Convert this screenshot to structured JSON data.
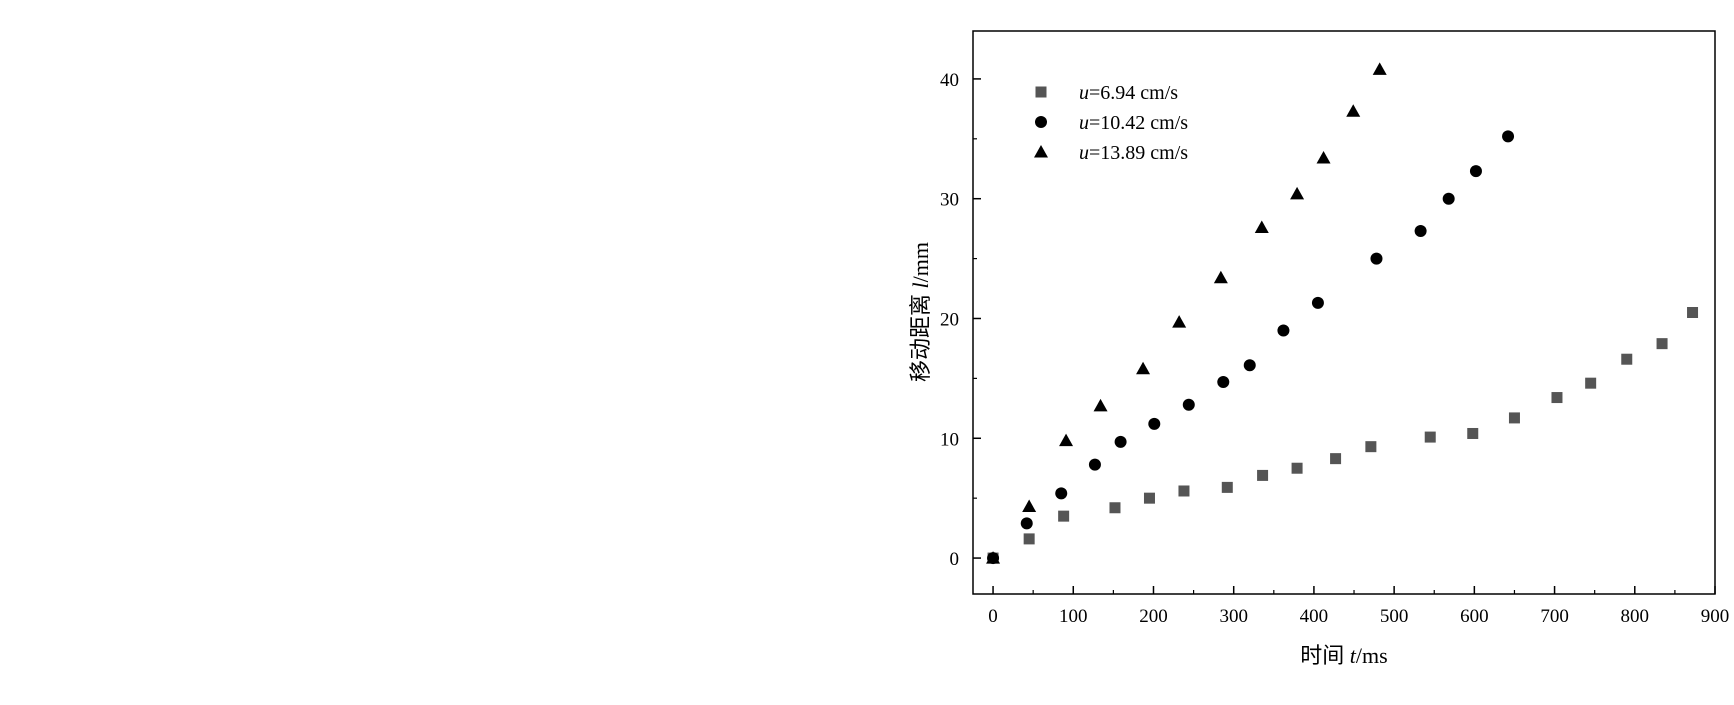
{
  "chart_data": {
    "type": "scatter",
    "xlabel": {
      "prefix": "时间 ",
      "var": "t",
      "unit": "/ms"
    },
    "ylabel": {
      "prefix": "移动距离 ",
      "var": "l",
      "unit": "/mm"
    },
    "xlim": [
      -25,
      900
    ],
    "ylim": [
      -3,
      44
    ],
    "xticks": [
      0,
      100,
      200,
      300,
      400,
      500,
      600,
      700,
      800,
      900
    ],
    "yticks": [
      0,
      10,
      20,
      30,
      40
    ],
    "grid": false,
    "legend_position": "top-left",
    "series": [
      {
        "name_var": "u",
        "name_value": "=6.94 cm/s",
        "marker": "square",
        "color": "#555555",
        "points": [
          [
            0,
            0
          ],
          [
            45,
            1.6
          ],
          [
            88,
            3.5
          ],
          [
            152,
            4.2
          ],
          [
            195,
            5.0
          ],
          [
            238,
            5.6
          ],
          [
            292,
            5.9
          ],
          [
            336,
            6.9
          ],
          [
            379,
            7.5
          ],
          [
            427,
            8.3
          ],
          [
            471,
            9.3
          ],
          [
            545,
            10.1
          ],
          [
            598,
            10.4
          ],
          [
            650,
            11.7
          ],
          [
            703,
            13.4
          ],
          [
            745,
            14.6
          ],
          [
            790,
            16.6
          ],
          [
            834,
            17.9
          ],
          [
            872,
            20.5
          ]
        ]
      },
      {
        "name_var": "u",
        "name_value": "=10.42 cm/s",
        "marker": "circle",
        "color": "#000000",
        "points": [
          [
            0,
            0
          ],
          [
            42,
            2.9
          ],
          [
            85,
            5.4
          ],
          [
            127,
            7.8
          ],
          [
            159,
            9.7
          ],
          [
            201,
            11.2
          ],
          [
            244,
            12.8
          ],
          [
            287,
            14.7
          ],
          [
            320,
            16.1
          ],
          [
            362,
            19.0
          ],
          [
            405,
            21.3
          ],
          [
            478,
            25.0
          ],
          [
            533,
            27.3
          ],
          [
            568,
            30.0
          ],
          [
            602,
            32.3
          ],
          [
            642,
            35.2
          ]
        ]
      },
      {
        "name_var": "u",
        "name_value": "=13.89 cm/s",
        "marker": "triangle",
        "color": "#000000",
        "points": [
          [
            0,
            0
          ],
          [
            45,
            4.3
          ],
          [
            91,
            9.8
          ],
          [
            134,
            12.7
          ],
          [
            187,
            15.8
          ],
          [
            232,
            19.7
          ],
          [
            284,
            23.4
          ],
          [
            335,
            27.6
          ],
          [
            379,
            30.4
          ],
          [
            412,
            33.4
          ],
          [
            449,
            37.3
          ],
          [
            482,
            40.8
          ]
        ]
      }
    ]
  }
}
